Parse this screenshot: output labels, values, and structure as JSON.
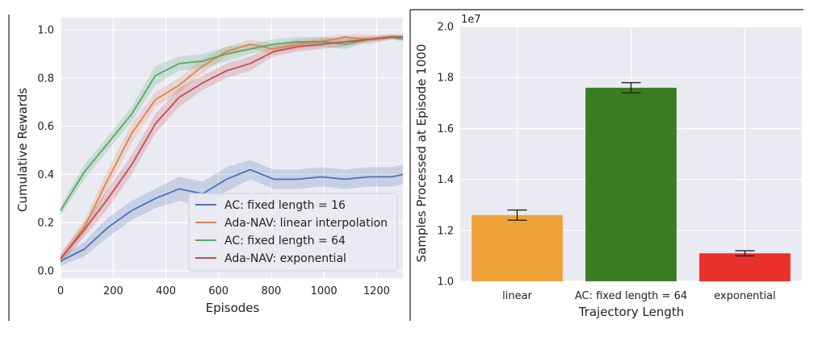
{
  "chart_data": [
    {
      "type": "line",
      "title": "",
      "xlabel": "Episodes",
      "ylabel": "Cumulative Rewards",
      "xlim": [
        0,
        1300
      ],
      "ylim": [
        -0.03,
        1.05
      ],
      "xticks": [
        "0",
        "200",
        "400",
        "600",
        "800",
        "1000",
        "1200"
      ],
      "yticks": [
        "0.0",
        "0.2",
        "0.4",
        "0.6",
        "0.8",
        "1.0"
      ],
      "grid": true,
      "legend_position": "lower-right",
      "series": [
        {
          "name": "AC: fixed length = 16",
          "color": "#4c72b0",
          "x": [
            0,
            90,
            180,
            270,
            360,
            450,
            540,
            630,
            720,
            810,
            900,
            990,
            1080,
            1170,
            1260,
            1300
          ],
          "y": [
            0.04,
            0.09,
            0.18,
            0.25,
            0.3,
            0.34,
            0.32,
            0.38,
            0.42,
            0.38,
            0.38,
            0.39,
            0.38,
            0.39,
            0.39,
            0.4
          ],
          "band": [
            0.02,
            0.03,
            0.04,
            0.04,
            0.04,
            0.05,
            0.05,
            0.05,
            0.04,
            0.04,
            0.04,
            0.04,
            0.04,
            0.04,
            0.04,
            0.04
          ]
        },
        {
          "name": "Ada-NAV: linear interpolation",
          "color": "#dd8452",
          "x": [
            0,
            90,
            180,
            270,
            360,
            450,
            540,
            630,
            720,
            810,
            900,
            990,
            1080,
            1170,
            1260,
            1300
          ],
          "y": [
            0.05,
            0.18,
            0.38,
            0.57,
            0.71,
            0.77,
            0.85,
            0.91,
            0.94,
            0.92,
            0.94,
            0.95,
            0.97,
            0.96,
            0.97,
            0.97
          ],
          "band": [
            0.02,
            0.03,
            0.04,
            0.04,
            0.03,
            0.03,
            0.03,
            0.02,
            0.02,
            0.02,
            0.02,
            0.02,
            0.01,
            0.02,
            0.01,
            0.01
          ]
        },
        {
          "name": "AC: fixed length = 64",
          "color": "#55a868",
          "x": [
            0,
            90,
            180,
            270,
            360,
            450,
            540,
            630,
            720,
            810,
            900,
            990,
            1080,
            1170,
            1260,
            1300
          ],
          "y": [
            0.25,
            0.41,
            0.53,
            0.65,
            0.81,
            0.86,
            0.87,
            0.9,
            0.92,
            0.94,
            0.95,
            0.95,
            0.94,
            0.96,
            0.97,
            0.96
          ],
          "band": [
            0.02,
            0.03,
            0.03,
            0.03,
            0.04,
            0.03,
            0.03,
            0.03,
            0.02,
            0.02,
            0.02,
            0.02,
            0.02,
            0.01,
            0.01,
            0.01
          ]
        },
        {
          "name": "Ada-NAV: exponential",
          "color": "#c44e52",
          "x": [
            0,
            90,
            180,
            270,
            360,
            450,
            540,
            630,
            720,
            810,
            900,
            990,
            1080,
            1170,
            1260,
            1300
          ],
          "y": [
            0.05,
            0.17,
            0.3,
            0.44,
            0.61,
            0.72,
            0.78,
            0.83,
            0.86,
            0.91,
            0.93,
            0.94,
            0.95,
            0.96,
            0.97,
            0.97
          ],
          "band": [
            0.02,
            0.03,
            0.04,
            0.04,
            0.04,
            0.04,
            0.03,
            0.03,
            0.03,
            0.02,
            0.02,
            0.02,
            0.02,
            0.01,
            0.01,
            0.01
          ]
        }
      ]
    },
    {
      "type": "bar",
      "title": "",
      "xlabel": "Trajectory Length",
      "ylabel": "Samples Processed at Episode 1000",
      "scale_label": "1e7",
      "ylim": [
        1.0,
        2.0
      ],
      "yticks": [
        "1.0",
        "1.2",
        "1.4",
        "1.6",
        "1.8",
        "2.0"
      ],
      "grid": true,
      "categories": [
        "linear",
        "AC: fixed length = 64",
        "exponential"
      ],
      "values": [
        1.26,
        1.76,
        1.11
      ],
      "errors": [
        0.02,
        0.02,
        0.01
      ],
      "colors": [
        "#f0a33a",
        "#3b7d23",
        "#e9302a"
      ]
    }
  ]
}
